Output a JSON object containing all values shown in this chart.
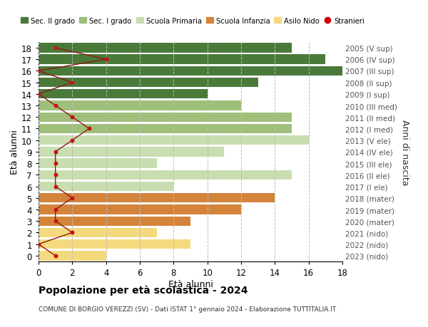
{
  "ages": [
    0,
    1,
    2,
    3,
    4,
    5,
    6,
    7,
    8,
    9,
    10,
    11,
    12,
    13,
    14,
    15,
    16,
    17,
    18
  ],
  "right_labels": [
    "2023 (nido)",
    "2022 (nido)",
    "2021 (nido)",
    "2020 (mater)",
    "2019 (mater)",
    "2018 (mater)",
    "2017 (I ele)",
    "2016 (II ele)",
    "2015 (III ele)",
    "2014 (IV ele)",
    "2013 (V ele)",
    "2012 (I med)",
    "2011 (II med)",
    "2010 (III med)",
    "2009 (I sup)",
    "2008 (II sup)",
    "2007 (III sup)",
    "2006 (IV sup)",
    "2005 (V sup)"
  ],
  "bar_values": [
    4,
    9,
    7,
    9,
    12,
    14,
    8,
    15,
    7,
    11,
    16,
    15,
    15,
    12,
    10,
    13,
    18,
    17,
    15
  ],
  "bar_colors": [
    "#f5d97e",
    "#f5d97e",
    "#f5d97e",
    "#d4843a",
    "#d4843a",
    "#d4843a",
    "#c8deb0",
    "#c8deb0",
    "#c8deb0",
    "#c8deb0",
    "#c8deb0",
    "#9ec07a",
    "#9ec07a",
    "#9ec07a",
    "#4a7a3a",
    "#4a7a3a",
    "#4a7a3a",
    "#4a7a3a",
    "#4a7a3a"
  ],
  "stranieri_values": [
    1,
    0,
    2,
    1,
    1,
    2,
    1,
    1,
    1,
    1,
    2,
    3,
    2,
    1,
    0,
    2,
    0,
    4,
    1
  ],
  "xlim": [
    0,
    18
  ],
  "ylim": [
    -0.5,
    18.5
  ],
  "title": "Popolazione per età scolastica - 2024",
  "subtitle": "COMUNE DI BORGIO VEREZZI (SV) - Dati ISTAT 1° gennaio 2024 - Elaborazione TUTTITALIA.IT",
  "legend_labels": [
    "Sec. II grado",
    "Sec. I grado",
    "Scuola Primaria",
    "Scuola Infanzia",
    "Asilo Nido",
    "Stranieri"
  ],
  "legend_colors": [
    "#4a7a3a",
    "#9ec07a",
    "#c8deb0",
    "#d4843a",
    "#f5d97e",
    "#cc0000"
  ],
  "grid_color": "#bbbbbb",
  "bg_color": "#ffffff",
  "xlabel": "Età alunni",
  "ylabel_right": "Anni di nascita",
  "ylabel_left": "Età alunni"
}
